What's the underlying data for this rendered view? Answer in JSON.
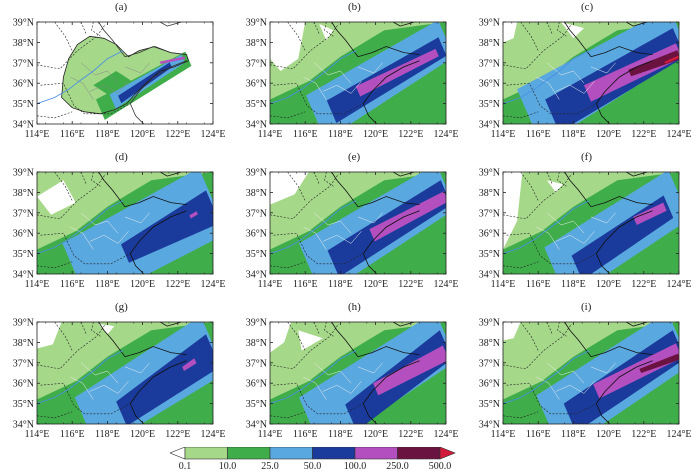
{
  "panels": [
    {
      "label": "(a)",
      "mode": "a"
    },
    {
      "label": "(b)",
      "mode": "b"
    },
    {
      "label": "(c)",
      "mode": "c"
    },
    {
      "label": "(d)",
      "mode": "d"
    },
    {
      "label": "(e)",
      "mode": "e"
    },
    {
      "label": "(f)",
      "mode": "f"
    },
    {
      "label": "(g)",
      "mode": "g"
    },
    {
      "label": "(h)",
      "mode": "h"
    },
    {
      "label": "(i)",
      "mode": "i"
    }
  ],
  "lat_ticks": [
    "39°N",
    "38°N",
    "37°N",
    "36°N",
    "35°N",
    "34°N"
  ],
  "lon_ticks": [
    "114°E",
    "116°E",
    "118°E",
    "120°E",
    "122°E",
    "124°E"
  ],
  "colorbar": {
    "labels": [
      "0.1",
      "10.0",
      "25.0",
      "50.0",
      "100.0",
      "250.0",
      "500.0"
    ],
    "colors": [
      "#ffffff",
      "#a6d88a",
      "#3fae4a",
      "#5aa8e0",
      "#1a3b9c",
      "#b34fbf",
      "#6b1340",
      "#d11a3a"
    ]
  }
}
